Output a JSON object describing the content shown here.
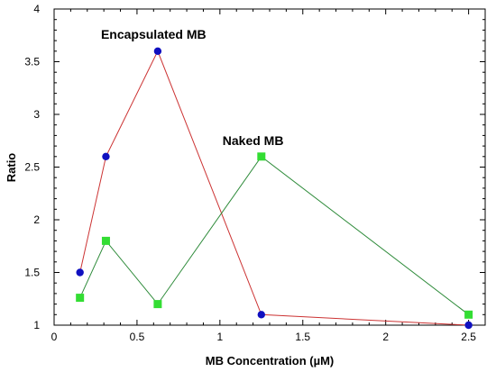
{
  "chart_data": {
    "type": "line",
    "title": "",
    "xlabel": "MB Concentration (µM)",
    "ylabel": "Ratio",
    "xlim": [
      0,
      2.6
    ],
    "ylim": [
      1,
      4
    ],
    "xticks": [
      0,
      0.5,
      1,
      1.5,
      2,
      2.5
    ],
    "xtick_labels": [
      "0",
      "0.5",
      "1",
      "1.5",
      "2",
      "2.5"
    ],
    "yticks": [
      1,
      1.5,
      2,
      2.5,
      3,
      3.5,
      4
    ],
    "ytick_labels": [
      "1",
      "1.5",
      "2",
      "2.5",
      "3",
      "3.5",
      "4"
    ],
    "grid": false,
    "legend": "none",
    "series": [
      {
        "name": "Encapsulated MB",
        "line_color": "#cc3333",
        "marker": "circle",
        "marker_color": "#1010c0",
        "x": [
          0.156,
          0.3125,
          0.625,
          1.25,
          2.5
        ],
        "y": [
          1.5,
          2.6,
          3.6,
          1.1,
          1.0
        ]
      },
      {
        "name": "Naked MB",
        "line_color": "#2e8b3a",
        "marker": "square",
        "marker_color": "#33dd33",
        "x": [
          0.156,
          0.3125,
          0.625,
          1.25,
          2.5
        ],
        "y": [
          1.26,
          1.8,
          1.2,
          2.6,
          1.1
        ]
      }
    ],
    "annotations": [
      {
        "text": "Encapsulated MB",
        "series": 0,
        "x": 0.6,
        "y": 3.72
      },
      {
        "text": "Naked MB",
        "series": 1,
        "x": 1.2,
        "y": 2.71
      }
    ]
  }
}
